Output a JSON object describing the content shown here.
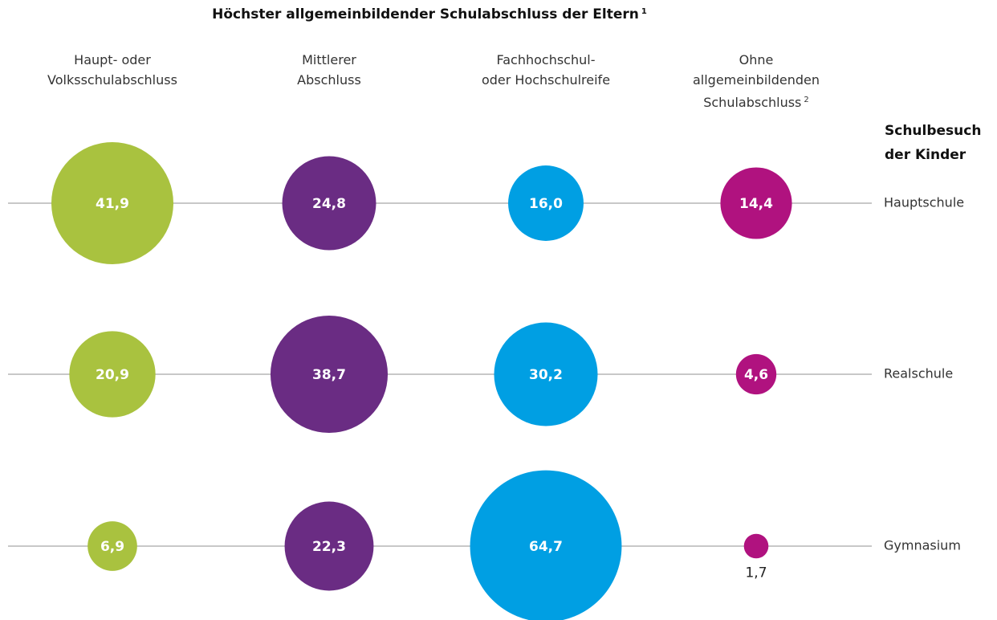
{
  "chart_data": {
    "type": "bubble",
    "title": "Höchster allgemeinbildender Schulabschluss der Eltern",
    "title_note": "1",
    "row_axis_label": "Schulbesuch\nder Kinder",
    "categories": [
      "Hauptschule",
      "Realschule",
      "Gymnasium"
    ],
    "series": [
      {
        "name": "Haupt- oder\nVolksschulabschluss",
        "color": "#a9c23f",
        "values": [
          41.9,
          20.9,
          6.9
        ],
        "value_labels": [
          "41,9",
          "20,9",
          "6,9"
        ]
      },
      {
        "name": "Mittlerer\nAbschluss",
        "color": "#6a2c83",
        "values": [
          24.8,
          38.7,
          22.3
        ],
        "value_labels": [
          "24,8",
          "38,7",
          "22,3"
        ]
      },
      {
        "name": "Fachhochschul-\noder Hochschulreife",
        "color": "#009fe3",
        "values": [
          16.0,
          30.2,
          64.7
        ],
        "value_labels": [
          "16,0",
          "30,2",
          "64,7"
        ]
      },
      {
        "name": "Ohne\nallgemeinbildenden\nSchulabschluss",
        "note": "2",
        "color": "#b0127f",
        "values": [
          14.4,
          4.6,
          1.7
        ],
        "value_labels": [
          "14,4",
          "4,6",
          "1,7"
        ]
      }
    ]
  }
}
